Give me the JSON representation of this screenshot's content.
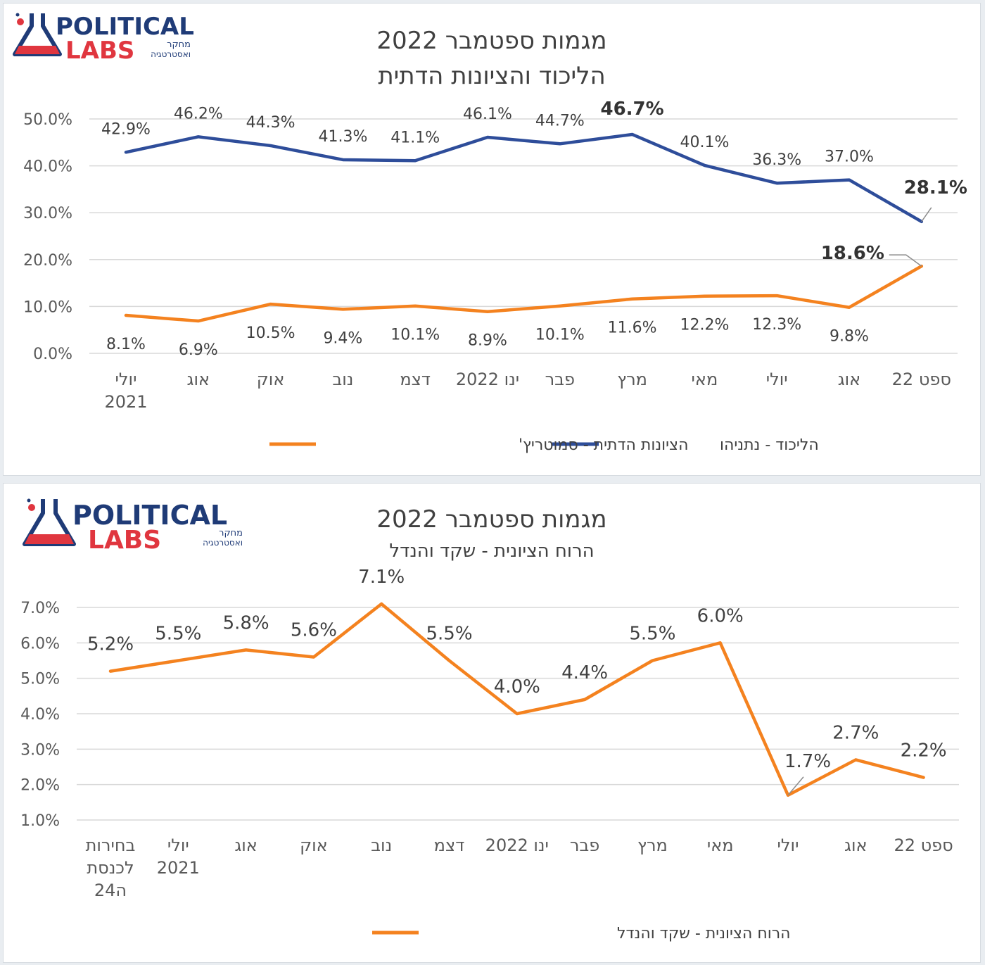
{
  "logo": {
    "line1": "POLITICAL",
    "line2": "LABS",
    "sub1": "מחקר",
    "sub2": "ואסטרטגיה"
  },
  "colors": {
    "likud": "#2e4d9a",
    "rzp": "#f4821f",
    "logo_navy": "#1f3b77",
    "logo_red": "#e0363f",
    "grid": "#d9d9d9",
    "text": "#404040"
  },
  "chart_data": [
    {
      "type": "line",
      "title": "מגמות ספטמבר 2022",
      "subtitle": "הליכוד והציונות הדתית",
      "categories": [
        "יולי 2021",
        "אוג",
        "אוק",
        "נוב",
        "דצמ",
        "ינו 2022",
        "פבר",
        "מרץ",
        "מאי",
        "יולי",
        "אוג",
        "ספט 22"
      ],
      "ylim": [
        0,
        50
      ],
      "yticks": [
        "0.0%",
        "10.0%",
        "20.0%",
        "30.0%",
        "40.0%",
        "50.0%"
      ],
      "grid": true,
      "legend": "bottom",
      "series": [
        {
          "name": "הליכוד - נתניהו",
          "color": "#2e4d9a",
          "values": [
            42.9,
            46.2,
            44.3,
            41.3,
            41.1,
            46.1,
            44.7,
            46.7,
            40.1,
            36.3,
            37.0,
            28.1
          ],
          "labels": [
            "42.9%",
            "46.2%",
            "44.3%",
            "41.3%",
            "41.1%",
            "46.1%",
            "44.7%",
            "46.7%",
            "40.1%",
            "36.3%",
            "37.0%",
            "28.1%"
          ]
        },
        {
          "name": "הציונות הדתית - סמוטריץ'",
          "color": "#f4821f",
          "values": [
            8.1,
            6.9,
            10.5,
            9.4,
            10.1,
            8.9,
            10.1,
            11.6,
            12.2,
            12.3,
            9.8,
            18.6
          ],
          "labels": [
            "8.1%",
            "6.9%",
            "10.5%",
            "9.4%",
            "10.1%",
            "8.9%",
            "10.1%",
            "11.6%",
            "12.2%",
            "12.3%",
            "9.8%",
            "18.6%"
          ]
        }
      ]
    },
    {
      "type": "line",
      "title": "מגמות ספטמבר 2022",
      "subtitle": "הרוח הציונית - שקד והנדל",
      "categories": [
        "בחירות לכנסת ה24",
        "יולי 2021",
        "אוג",
        "אוק",
        "נוב",
        "דצמ",
        "ינו 2022",
        "פבר",
        "מרץ",
        "מאי",
        "יולי",
        "אוג",
        "ספט 22"
      ],
      "ylim": [
        1,
        7
      ],
      "yticks": [
        "1.0%",
        "2.0%",
        "3.0%",
        "4.0%",
        "5.0%",
        "6.0%",
        "7.0%"
      ],
      "grid": true,
      "legend": "bottom",
      "series": [
        {
          "name": "הרוח הציונית - שקד והנדל",
          "color": "#f4821f",
          "values": [
            5.2,
            5.5,
            5.8,
            5.6,
            7.1,
            5.5,
            4.0,
            4.4,
            5.5,
            6.0,
            1.7,
            2.7,
            2.2
          ],
          "labels": [
            "5.2%",
            "5.5%",
            "5.8%",
            "5.6%",
            "7.1%",
            "5.5%",
            "4.0%",
            "4.4%",
            "5.5%",
            "6.0%",
            "1.7%",
            "2.7%",
            "2.2%"
          ]
        }
      ]
    }
  ]
}
